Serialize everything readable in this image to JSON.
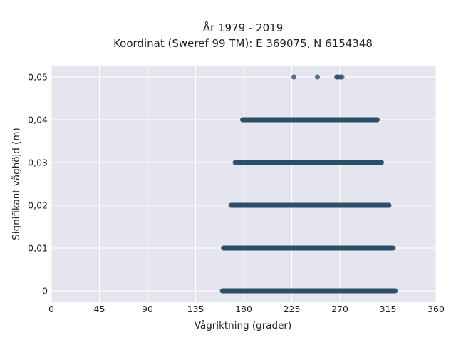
{
  "chart_data": {
    "type": "scatter",
    "title_lines": [
      "År 1979 - 2019",
      "Koordinat (Sweref 99 TM): E 369075, N 6154348"
    ],
    "xlabel": "Vågriktning (grader)",
    "ylabel": "Signifikant våghöjd (m)",
    "xlim": [
      0,
      360
    ],
    "ylim": [
      -0.0025,
      0.0525
    ],
    "x_ticks": [
      0,
      45,
      90,
      135,
      180,
      225,
      270,
      315,
      360
    ],
    "x_tick_labels": [
      "0",
      "45",
      "90",
      "135",
      "180",
      "225",
      "270",
      "315",
      "360"
    ],
    "y_ticks": [
      0,
      0.01,
      0.02,
      0.03,
      0.04,
      0.05
    ],
    "y_tick_labels": [
      "0",
      "0,01",
      "0,02",
      "0,03",
      "0,04",
      "0,05"
    ],
    "grid": true,
    "marker_color": "#2e5068",
    "plot_background": "#e5e5f0",
    "series": [
      {
        "values": [
          {
            "y": 0.05,
            "x": [
              227,
              249,
              267,
              268,
              270,
              272
            ]
          },
          {
            "y": 0.04,
            "x_range": [
              179,
              305
            ],
            "sparse_x": [
              180,
              183,
              185
            ]
          },
          {
            "y": 0.03,
            "x_range": [
              173,
              309
            ],
            "sparse_x": [
              172,
              176,
              179,
              305,
              307
            ]
          },
          {
            "y": 0.02,
            "x_range": [
              169,
              316
            ],
            "sparse_x": [
              168,
              170,
              171,
              313,
              315
            ]
          },
          {
            "y": 0.01,
            "x_range": [
              162,
              318
            ],
            "sparse_x": [
              161,
              319,
              320
            ]
          },
          {
            "y": 0.0,
            "x_range": [
              161,
              320
            ],
            "sparse_x": [
              160,
              321,
              322
            ]
          }
        ]
      }
    ]
  }
}
